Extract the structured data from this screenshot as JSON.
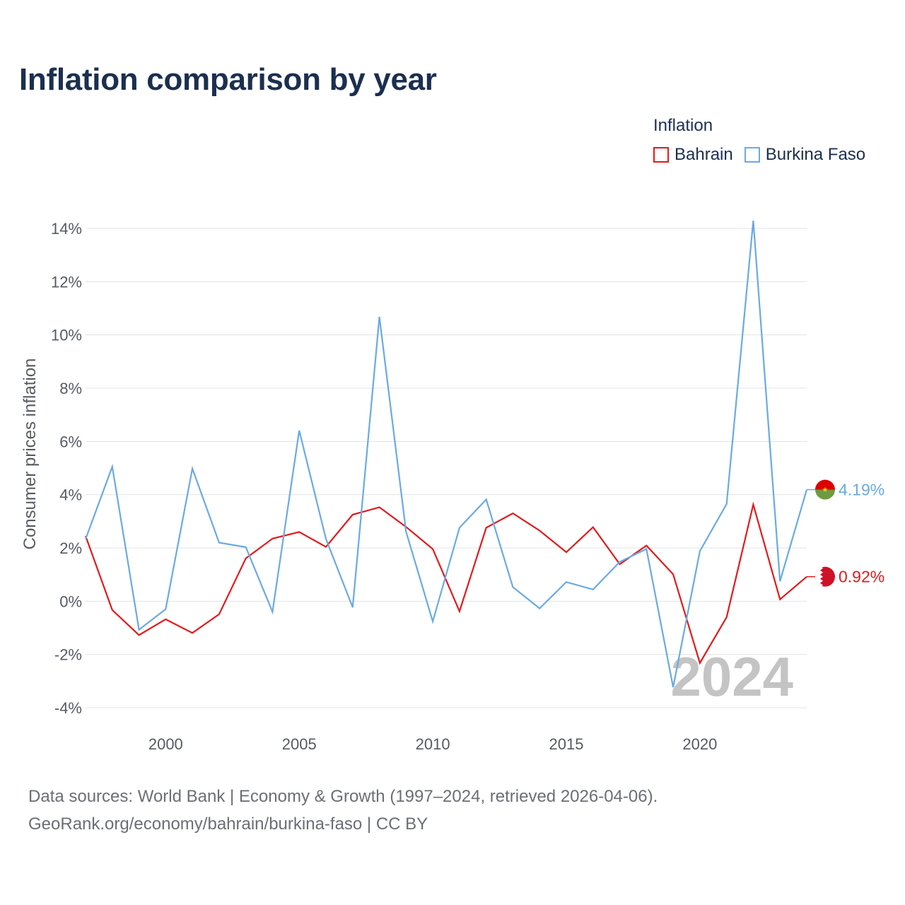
{
  "title": "Inflation comparison by year",
  "legend": {
    "title": "Inflation",
    "items": [
      {
        "label": "Bahrain",
        "color": "#e31a1c"
      },
      {
        "label": "Burkina Faso",
        "color": "#6aaae4"
      }
    ]
  },
  "chart_data": {
    "type": "line",
    "title": "Inflation comparison by year",
    "xlabel": "",
    "ylabel": "Consumer prices inflation",
    "x": [
      1997,
      1998,
      1999,
      2000,
      2001,
      2002,
      2003,
      2004,
      2005,
      2006,
      2007,
      2008,
      2009,
      2010,
      2011,
      2012,
      2013,
      2014,
      2015,
      2016,
      2017,
      2018,
      2019,
      2020,
      2021,
      2022,
      2023,
      2024
    ],
    "xlim": [
      1997,
      2024
    ],
    "ylim": [
      -4,
      14
    ],
    "x_ticks": [
      2000,
      2005,
      2010,
      2015,
      2020
    ],
    "x_tick_labels": [
      "2000",
      "2005",
      "2010",
      "2015",
      "2020"
    ],
    "y_ticks": [
      -4,
      -2,
      0,
      2,
      4,
      6,
      8,
      10,
      12,
      14
    ],
    "y_tick_labels": [
      "-4%",
      "-2%",
      "0%",
      "2%",
      "4%",
      "6%",
      "8%",
      "10%",
      "12%",
      "14%"
    ],
    "grid": true,
    "series": [
      {
        "name": "Bahrain",
        "color": "#e31a1c",
        "values": [
          2.45,
          -0.33,
          -1.27,
          -0.68,
          -1.19,
          -0.49,
          1.61,
          2.35,
          2.6,
          2.04,
          3.25,
          3.53,
          2.79,
          1.96,
          -0.38,
          2.76,
          3.3,
          2.65,
          1.84,
          2.78,
          1.39,
          2.09,
          1.01,
          -2.32,
          -0.6,
          3.63,
          0.07,
          0.92
        ],
        "end_label": "0.92%"
      },
      {
        "name": "Burkina Faso",
        "color": "#6aaae4",
        "values": [
          2.33,
          5.05,
          -1.07,
          -0.3,
          4.98,
          2.2,
          2.03,
          -0.4,
          6.41,
          2.34,
          -0.23,
          10.68,
          2.61,
          -0.76,
          2.76,
          3.82,
          0.53,
          -0.27,
          0.72,
          0.44,
          1.48,
          1.96,
          -3.23,
          1.88,
          3.65,
          14.29,
          0.75,
          4.19
        ],
        "end_label": "4.19%"
      }
    ],
    "annotation": "2024"
  },
  "flags": {
    "burkina_faso": {
      "top": "#de0000",
      "bottom": "#6f9a3f",
      "star": "#fcd116"
    },
    "bahrain": {
      "left": "#ffffff",
      "right": "#ce1126"
    }
  },
  "source": {
    "line1": "Data sources: World Bank | Economy & Growth (1997–2024, retrieved 2026-04-06).",
    "line2": "GeoRank.org/economy/bahrain/burkina-faso | CC BY"
  }
}
